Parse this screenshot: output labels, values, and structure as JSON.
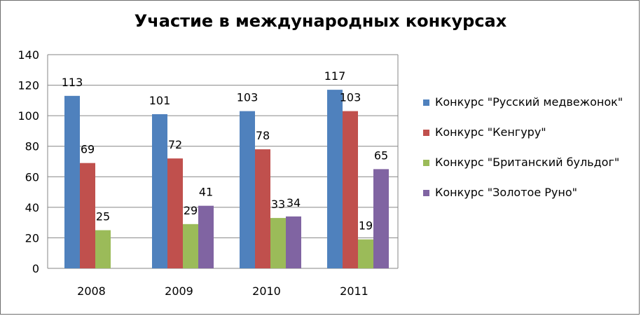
{
  "chart_data": {
    "type": "bar",
    "title": "Участие в международных конкурсах",
    "categories": [
      "2008",
      "2009",
      "2010",
      "2011"
    ],
    "ylim": [
      0,
      140
    ],
    "yticks": [
      0,
      20,
      40,
      60,
      80,
      100,
      120,
      140
    ],
    "grid": true,
    "legend_position": "right",
    "series": [
      {
        "name": "Конкурс \"Русский медвежонок\"",
        "color": "#4f81bd",
        "values": [
          113,
          101,
          103,
          117
        ]
      },
      {
        "name": "Конкурс \"Кенгуру\"",
        "color": "#c0504d",
        "values": [
          69,
          72,
          78,
          103
        ]
      },
      {
        "name": "Конкурс \"Британский бульдог\"",
        "color": "#9bbb59",
        "values": [
          25,
          29,
          33,
          19
        ]
      },
      {
        "name": "Конкурс \"Золотое Руно\"",
        "color": "#8064a2",
        "values": [
          null,
          41,
          34,
          65
        ]
      }
    ]
  }
}
